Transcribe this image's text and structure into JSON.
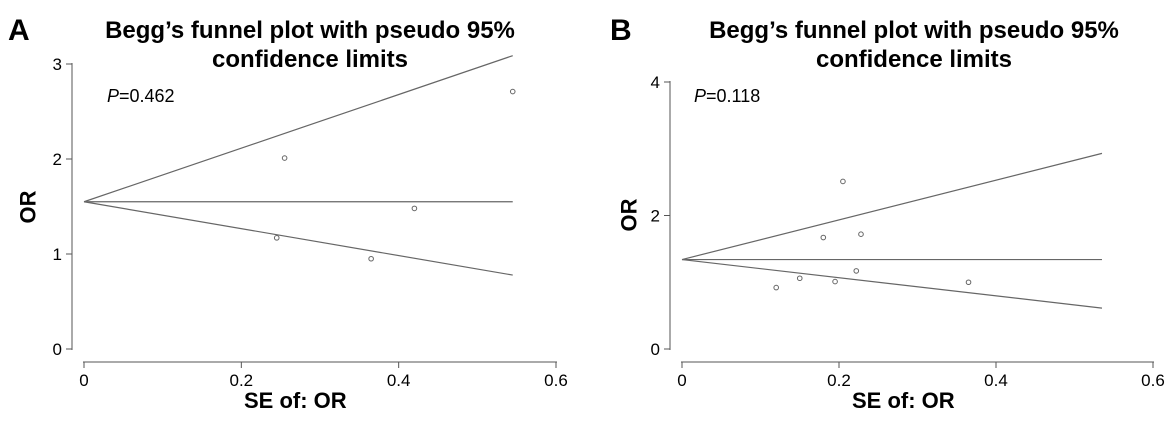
{
  "chart_data": [
    {
      "type": "scatter",
      "panel_letter": "A",
      "title": "Begg's funnel plot with pseudo 95% confidence limits",
      "title_lines": [
        "Begg’s funnel plot with pseudo 95%",
        "confidence limits"
      ],
      "annotation": {
        "p_label": "P",
        "p_value": "=0.462"
      },
      "xlabel": "SE of: OR",
      "ylabel": "OR",
      "xlim": [
        0,
        0.6
      ],
      "ylim": [
        0,
        3
      ],
      "xticks": [
        "0",
        "0.2",
        "0.4",
        "0.6"
      ],
      "yticks": [
        "0",
        "1",
        "2",
        "3"
      ],
      "pooled_estimate": 1.55,
      "funnel_max_se": 0.545,
      "points": [
        {
          "x": 0.245,
          "y": 1.17
        },
        {
          "x": 0.255,
          "y": 2.01
        },
        {
          "x": 0.365,
          "y": 0.95
        },
        {
          "x": 0.42,
          "y": 1.48
        },
        {
          "x": 0.545,
          "y": 2.71
        }
      ]
    },
    {
      "type": "scatter",
      "panel_letter": "B",
      "title": "Begg's funnel plot with pseudo 95% confidence limits",
      "title_lines": [
        "Begg’s funnel plot with pseudo 95%",
        "confidence limits"
      ],
      "annotation": {
        "p_label": "P",
        "p_value": "=0.118"
      },
      "xlabel": "SE of: OR",
      "ylabel": "OR",
      "xlim": [
        0,
        0.6
      ],
      "ylim": [
        0,
        4
      ],
      "xticks": [
        "0",
        "0.2",
        "0.4",
        "0.6"
      ],
      "yticks": [
        "0",
        "2",
        "4"
      ],
      "pooled_estimate": 1.34,
      "funnel_max_se": 0.535,
      "points": [
        {
          "x": 0.12,
          "y": 0.92
        },
        {
          "x": 0.15,
          "y": 1.06
        },
        {
          "x": 0.18,
          "y": 1.67
        },
        {
          "x": 0.195,
          "y": 1.01
        },
        {
          "x": 0.205,
          "y": 2.51
        },
        {
          "x": 0.222,
          "y": 1.17
        },
        {
          "x": 0.228,
          "y": 1.72
        },
        {
          "x": 0.365,
          "y": 1.0
        }
      ]
    }
  ]
}
